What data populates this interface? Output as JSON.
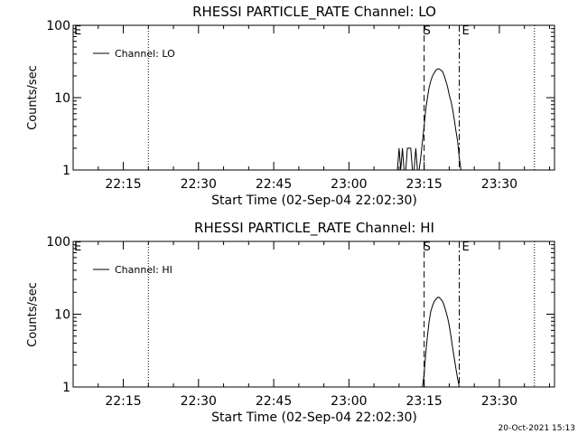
{
  "footer": {
    "date": "20-Oct-2021 15:13"
  },
  "chart_data": [
    {
      "type": "line",
      "title": "RHESSI PARTICLE_RATE Channel: LO",
      "xlabel": "Start Time (02-Sep-04 22:02:30)",
      "ylabel": "Counts/sec",
      "yscale": "log",
      "ylim": [
        1,
        100
      ],
      "xlim": [
        "22:05:00",
        "23:41:00"
      ],
      "x_ticks": [
        "22:15",
        "22:30",
        "22:45",
        "23:00",
        "23:15",
        "23:30"
      ],
      "y_ticks": [
        "1",
        "10",
        "100"
      ],
      "legend": {
        "position": "top-left",
        "entries": [
          "Channel: LO"
        ]
      },
      "markers": {
        "left_label": "E",
        "s_label": "S",
        "e_label": "E",
        "dotted_times": [
          "22:20:00",
          "23:37:00"
        ],
        "dashed_times": [
          "23:15:00",
          "23:22:00"
        ]
      },
      "series": [
        {
          "name": "Channel: LO",
          "x": [
            "23:09:00",
            "23:09:20",
            "23:09:40",
            "23:10:00",
            "23:10:20",
            "23:10:40",
            "23:11:00",
            "23:11:20",
            "23:11:40",
            "23:12:00",
            "23:12:20",
            "23:12:40",
            "23:13:00",
            "23:13:20",
            "23:13:40",
            "23:14:00",
            "23:14:20",
            "23:14:40",
            "23:15:00",
            "23:15:20",
            "23:15:40",
            "23:16:00",
            "23:16:20",
            "23:16:40",
            "23:17:00",
            "23:17:20",
            "23:17:40",
            "23:18:00",
            "23:18:20",
            "23:18:40",
            "23:19:00",
            "23:19:20",
            "23:19:40",
            "23:20:00",
            "23:20:20",
            "23:20:40",
            "23:21:00",
            "23:21:20",
            "23:21:40",
            "23:22:00",
            "23:22:20",
            "23:22:40",
            "23:23:00",
            "23:23:20",
            "23:23:40"
          ],
          "values": [
            1.0,
            1.0,
            1.0,
            2.0,
            1.0,
            2.0,
            1.0,
            1.0,
            2.0,
            2.0,
            2.0,
            1.0,
            1.0,
            2.0,
            1.0,
            1.0,
            1.5,
            2.5,
            4,
            7,
            10,
            14,
            17,
            20,
            22,
            24,
            25,
            25,
            24,
            23,
            20,
            17,
            14,
            11,
            9,
            7,
            5,
            3.5,
            2.5,
            1.5,
            1.0,
            1.0,
            1.0,
            1.0,
            1.0
          ]
        }
      ]
    },
    {
      "type": "line",
      "title": "RHESSI PARTICLE_RATE Channel: HI",
      "xlabel": "Start Time (02-Sep-04 22:02:30)",
      "ylabel": "Counts/sec",
      "yscale": "log",
      "ylim": [
        1,
        100
      ],
      "xlim": [
        "22:05:00",
        "23:41:00"
      ],
      "x_ticks": [
        "22:15",
        "22:30",
        "22:45",
        "23:00",
        "23:15",
        "23:30"
      ],
      "y_ticks": [
        "1",
        "10",
        "100"
      ],
      "legend": {
        "position": "top-left",
        "entries": [
          "Channel: HI"
        ]
      },
      "markers": {
        "left_label": "E",
        "s_label": "S",
        "e_label": "E",
        "dotted_times": [
          "22:20:00",
          "23:37:00"
        ],
        "dashed_times": [
          "23:15:00",
          "23:22:00"
        ]
      },
      "series": [
        {
          "name": "Channel: HI",
          "x": [
            "23:14:40",
            "23:15:00",
            "23:15:20",
            "23:15:40",
            "23:16:00",
            "23:16:20",
            "23:16:40",
            "23:17:00",
            "23:17:20",
            "23:17:40",
            "23:18:00",
            "23:18:20",
            "23:18:40",
            "23:19:00",
            "23:19:20",
            "23:19:40",
            "23:20:00",
            "23:20:20",
            "23:20:40",
            "23:21:00",
            "23:21:20",
            "23:21:40",
            "23:22:00",
            "23:22:20",
            "23:22:40",
            "23:23:00",
            "23:23:20"
          ],
          "values": [
            1.0,
            1.5,
            3,
            5,
            8,
            11,
            13,
            15,
            16,
            17,
            17,
            16,
            15,
            13,
            11,
            9,
            7,
            5,
            3.5,
            2.5,
            1.8,
            1.3,
            1.0,
            1.0,
            1.0,
            1.0,
            1.0
          ]
        }
      ]
    }
  ]
}
